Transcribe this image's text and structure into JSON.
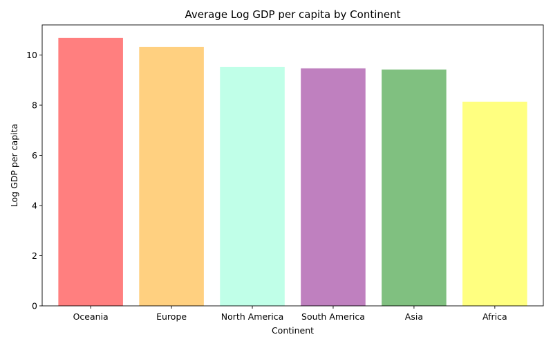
{
  "chart_data": {
    "type": "bar",
    "title": "Average Log GDP per capita by Continent",
    "xlabel": "Continent",
    "ylabel": "Log GDP per capita",
    "categories": [
      "Oceania",
      "Europe",
      "North America",
      "South America",
      "Asia",
      "Africa"
    ],
    "values": [
      10.68,
      10.32,
      9.52,
      9.47,
      9.42,
      8.14
    ],
    "colors": [
      "#ff7f7f",
      "#ffd080",
      "#c0ffe8",
      "#bf80bf",
      "#80c080",
      "#ffff80"
    ],
    "ylim": [
      0,
      11.2
    ],
    "yticks": [
      0,
      2,
      4,
      6,
      8,
      10
    ],
    "grid": false,
    "legend": "none"
  }
}
